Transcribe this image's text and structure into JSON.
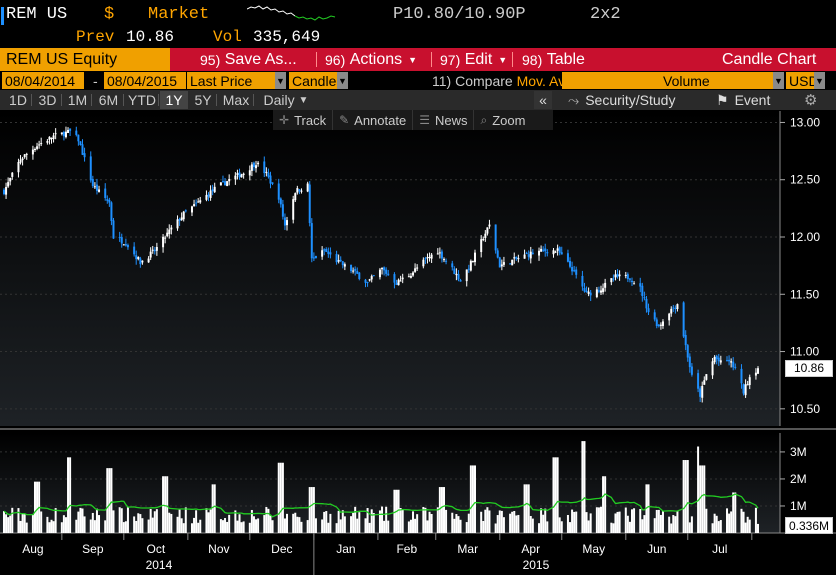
{
  "header": {
    "ticker": "REM US",
    "currency_symbol": "$",
    "market_label": "Market",
    "bid_ask": "P10.80/10.90P",
    "grid_label": "2x2",
    "prev_label": "Prev",
    "prev_value": "10.86",
    "vol_label": "Vol",
    "vol_value": "335,649"
  },
  "menu": {
    "security": "REM US Equity",
    "items": [
      {
        "num": "95)",
        "label": "Save As..."
      },
      {
        "num": "96)",
        "label": "Actions"
      },
      {
        "num": "97)",
        "label": "Edit"
      },
      {
        "num": "98)",
        "label": "Table"
      }
    ],
    "chart_type_title": "Candle Chart"
  },
  "params": {
    "start_date": "08/04/2014",
    "dash": "-",
    "end_date": "08/04/2015",
    "price_field": "Last Price",
    "style": "Candle",
    "compare_num": "11)",
    "compare_label": "Compare",
    "compare_value": "Mov. Avgs",
    "lower_study": "Volume",
    "currency": "USD"
  },
  "periods": {
    "buttons": [
      "1D",
      "3D",
      "1M",
      "6M",
      "YTD",
      "1Y",
      "5Y",
      "Max"
    ],
    "active": "1Y",
    "frequency": "Daily",
    "collapse": "«",
    "security_study": "Security/Study",
    "event": "Event",
    "settings_icon": "gear-icon"
  },
  "toolbar": {
    "items": [
      {
        "icon": "crosshair-icon",
        "label": "Track"
      },
      {
        "icon": "pencil-icon",
        "label": "Annotate"
      },
      {
        "icon": "news-icon",
        "label": "News"
      },
      {
        "icon": "magnifier-icon",
        "label": "Zoom"
      }
    ]
  },
  "colors": {
    "up": "#ffffff",
    "down": "#1e90ff",
    "moving_average": "#22cc22",
    "accent": "#f0a000",
    "menu": "#c8102e"
  },
  "chart_data": [
    {
      "type": "candlestick",
      "title": "",
      "y_ticks": [
        13.0,
        12.5,
        12.0,
        11.5,
        11.0,
        10.5
      ],
      "ylim": [
        10.35,
        13.1
      ],
      "last_price_label": "10.86",
      "x_months": [
        "Aug",
        "Sep",
        "Oct",
        "Nov",
        "Dec",
        "Jan",
        "Feb",
        "Mar",
        "Apr",
        "May",
        "Jun",
        "Jul"
      ],
      "x_years": [
        "2014",
        "2015"
      ],
      "x_range": [
        "2014-08-04",
        "2015-08-04"
      ],
      "close_path": [
        [
          "2014-08-04",
          12.4
        ],
        [
          "2014-08-12",
          12.68
        ],
        [
          "2014-08-20",
          12.8
        ],
        [
          "2014-08-28",
          12.88
        ],
        [
          "2014-09-05",
          12.92
        ],
        [
          "2014-09-09",
          12.85
        ],
        [
          "2014-09-16",
          12.45
        ],
        [
          "2014-09-24",
          12.3
        ],
        [
          "2014-09-26",
          12.0
        ],
        [
          "2014-10-02",
          11.95
        ],
        [
          "2014-10-09",
          11.78
        ],
        [
          "2014-10-16",
          11.88
        ],
        [
          "2014-10-23",
          12.05
        ],
        [
          "2014-10-30",
          12.2
        ],
        [
          "2014-11-06",
          12.3
        ],
        [
          "2014-11-14",
          12.42
        ],
        [
          "2014-11-21",
          12.5
        ],
        [
          "2014-11-28",
          12.56
        ],
        [
          "2014-12-04",
          12.65
        ],
        [
          "2014-12-09",
          12.55
        ],
        [
          "2014-12-15",
          12.35
        ],
        [
          "2014-12-18",
          12.1
        ],
        [
          "2014-12-23",
          12.4
        ],
        [
          "2014-12-29",
          12.45
        ],
        [
          "2014-12-31",
          11.8
        ],
        [
          "2015-01-06",
          11.88
        ],
        [
          "2015-01-13",
          11.78
        ],
        [
          "2015-01-20",
          11.7
        ],
        [
          "2015-01-27",
          11.6
        ],
        [
          "2015-02-03",
          11.72
        ],
        [
          "2015-02-10",
          11.6
        ],
        [
          "2015-02-17",
          11.68
        ],
        [
          "2015-02-24",
          11.8
        ],
        [
          "2015-03-02",
          11.88
        ],
        [
          "2015-03-09",
          11.72
        ],
        [
          "2015-03-13",
          11.62
        ],
        [
          "2015-03-19",
          11.8
        ],
        [
          "2015-03-24",
          12.0
        ],
        [
          "2015-03-27",
          12.1
        ],
        [
          "2015-04-01",
          11.75
        ],
        [
          "2015-04-08",
          11.8
        ],
        [
          "2015-04-15",
          11.85
        ],
        [
          "2015-04-22",
          11.88
        ],
        [
          "2015-04-29",
          11.88
        ],
        [
          "2015-05-06",
          11.72
        ],
        [
          "2015-05-13",
          11.5
        ],
        [
          "2015-05-20",
          11.55
        ],
        [
          "2015-05-27",
          11.65
        ],
        [
          "2015-06-03",
          11.65
        ],
        [
          "2015-06-08",
          11.55
        ],
        [
          "2015-06-12",
          11.35
        ],
        [
          "2015-06-17",
          11.22
        ],
        [
          "2015-06-22",
          11.35
        ],
        [
          "2015-06-26",
          11.42
        ],
        [
          "2015-06-30",
          11.05
        ],
        [
          "2015-07-03",
          10.78
        ],
        [
          "2015-07-07",
          10.62
        ],
        [
          "2015-07-10",
          10.8
        ],
        [
          "2015-07-14",
          10.95
        ],
        [
          "2015-07-17",
          10.9
        ],
        [
          "2015-07-21",
          10.92
        ],
        [
          "2015-07-24",
          10.85
        ],
        [
          "2015-07-28",
          10.65
        ],
        [
          "2015-07-31",
          10.78
        ],
        [
          "2015-08-04",
          10.86
        ]
      ]
    },
    {
      "type": "bar",
      "title": "",
      "y_ticks": [
        "3M",
        "2M",
        "1M"
      ],
      "y_tick_values": [
        3000000,
        2000000,
        1000000
      ],
      "ylim": [
        0,
        3700000
      ],
      "last_volume_label": "0.336M",
      "typical_volume": 700000,
      "volume_spikes": [
        [
          "2014-08-20",
          1900000
        ],
        [
          "2014-09-05",
          2800000
        ],
        [
          "2014-09-24",
          2400000
        ],
        [
          "2014-10-21",
          2100000
        ],
        [
          "2014-11-14",
          1800000
        ],
        [
          "2014-12-16",
          2600000
        ],
        [
          "2014-12-31",
          1700000
        ],
        [
          "2015-02-10",
          1600000
        ],
        [
          "2015-03-04",
          1700000
        ],
        [
          "2015-03-19",
          2500000
        ],
        [
          "2015-04-14",
          1800000
        ],
        [
          "2015-04-28",
          2800000
        ],
        [
          "2015-05-11",
          3400000
        ],
        [
          "2015-05-22",
          2100000
        ],
        [
          "2015-06-12",
          1800000
        ],
        [
          "2015-06-30",
          2700000
        ],
        [
          "2015-07-06",
          3200000
        ],
        [
          "2015-07-08",
          2500000
        ],
        [
          "2015-07-24",
          1500000
        ]
      ],
      "moving_average_color": "#22cc22"
    }
  ]
}
